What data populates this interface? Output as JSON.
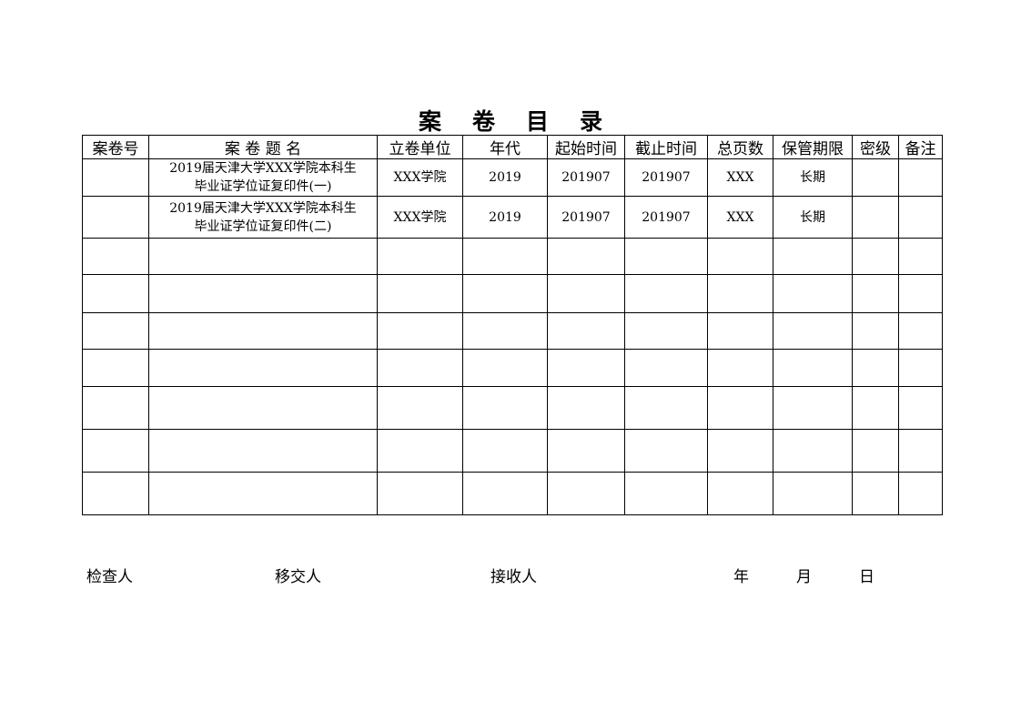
{
  "title": [
    "案",
    "卷",
    "目",
    "录"
  ],
  "headers": [
    "案卷号",
    "案 卷 题 名",
    "立卷单位",
    "年代",
    "起始时间",
    "截止时间",
    "总页数",
    "保管期限",
    "密级",
    "备注"
  ],
  "rows": [
    [
      "",
      "2019届天津大学XXX学院本科生\n毕业证学位证复印件(一)",
      "XXX学院",
      "2019",
      "201907",
      "201907",
      "XXX",
      "长期",
      "",
      ""
    ],
    [
      "",
      "2019届天津大学XXX学院本科生\n毕业证学位证复印件(二)",
      "XXX学院",
      "2019",
      "201907",
      "201907",
      "XXX",
      "长期",
      "",
      ""
    ],
    [
      "",
      "",
      "",
      "",
      "",
      "",
      "",
      "",
      "",
      ""
    ],
    [
      "",
      "",
      "",
      "",
      "",
      "",
      "",
      "",
      "",
      ""
    ],
    [
      "",
      "",
      "",
      "",
      "",
      "",
      "",
      "",
      "",
      ""
    ],
    [
      "",
      "",
      "",
      "",
      "",
      "",
      "",
      "",
      "",
      ""
    ],
    [
      "",
      "",
      "",
      "",
      "",
      "",
      "",
      "",
      "",
      ""
    ],
    [
      "",
      "",
      "",
      "",
      "",
      "",
      "",
      "",
      "",
      ""
    ],
    [
      "",
      "",
      "",
      "",
      "",
      "",
      "",
      "",
      "",
      ""
    ]
  ],
  "footer": {
    "inspector": "检查人",
    "transferor": "移交人",
    "receiver": "接收人",
    "year": "年",
    "month": "月",
    "day": "日"
  }
}
